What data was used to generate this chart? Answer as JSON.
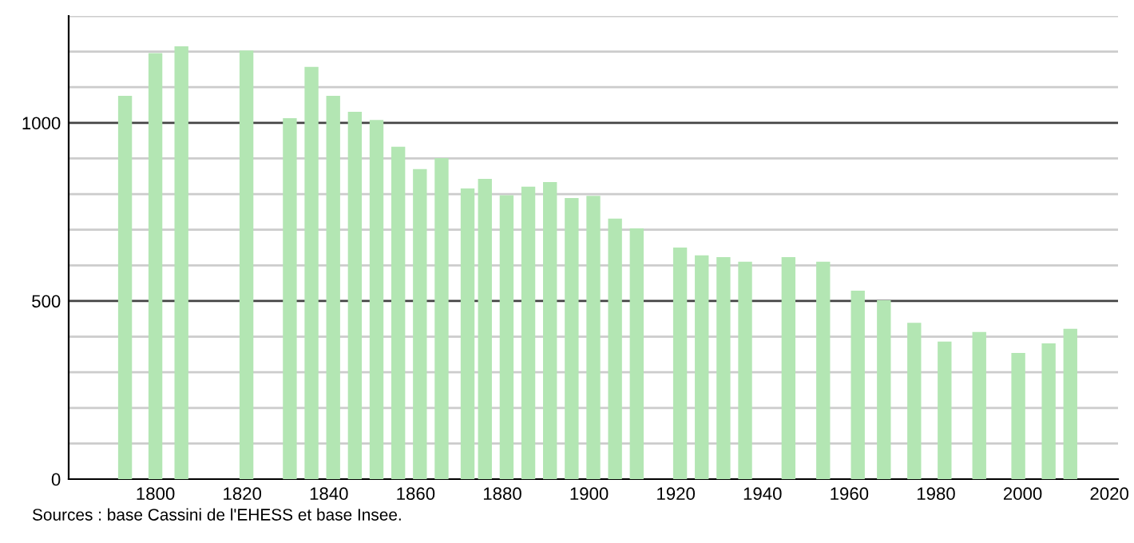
{
  "chart_data": {
    "type": "bar",
    "x": [
      1793,
      1800,
      1806,
      1821,
      1831,
      1836,
      1841,
      1846,
      1851,
      1856,
      1861,
      1866,
      1872,
      1876,
      1881,
      1886,
      1891,
      1896,
      1901,
      1906,
      1911,
      1921,
      1926,
      1931,
      1936,
      1946,
      1954,
      1962,
      1968,
      1975,
      1982,
      1990,
      1999,
      2006,
      2011
    ],
    "values": [
      1076,
      1196,
      1215,
      1203,
      1013,
      1157,
      1076,
      1031,
      1008,
      933,
      870,
      901,
      816,
      843,
      797,
      821,
      834,
      789,
      795,
      731,
      704,
      650,
      628,
      623,
      610,
      623,
      610,
      529,
      502,
      439,
      386,
      413,
      354,
      381,
      422
    ],
    "color": "#b3e6b3",
    "xlim": [
      1780,
      2022
    ],
    "xticks": [
      1800,
      1820,
      1840,
      1860,
      1880,
      1900,
      1920,
      1940,
      1960,
      1980,
      2000,
      2020
    ],
    "ylim": [
      0,
      1300
    ],
    "yticks": [
      0,
      {
        "value": 100,
        "label": null
      },
      {
        "value": 200,
        "label": null
      },
      {
        "value": 300,
        "label": null
      },
      {
        "value": 400,
        "label": null
      },
      500,
      {
        "value": 600,
        "label": null
      },
      {
        "value": 700,
        "label": null
      },
      {
        "value": 800,
        "label": null
      },
      {
        "value": 900,
        "label": null
      },
      1000,
      {
        "value": 1100,
        "label": null
      },
      {
        "value": 1200,
        "label": null
      },
      {
        "value": 1300,
        "label": null
      }
    ],
    "grid": "y",
    "annotations": [
      "Sources : base Cassini de l'EHESS et base Insee."
    ]
  }
}
